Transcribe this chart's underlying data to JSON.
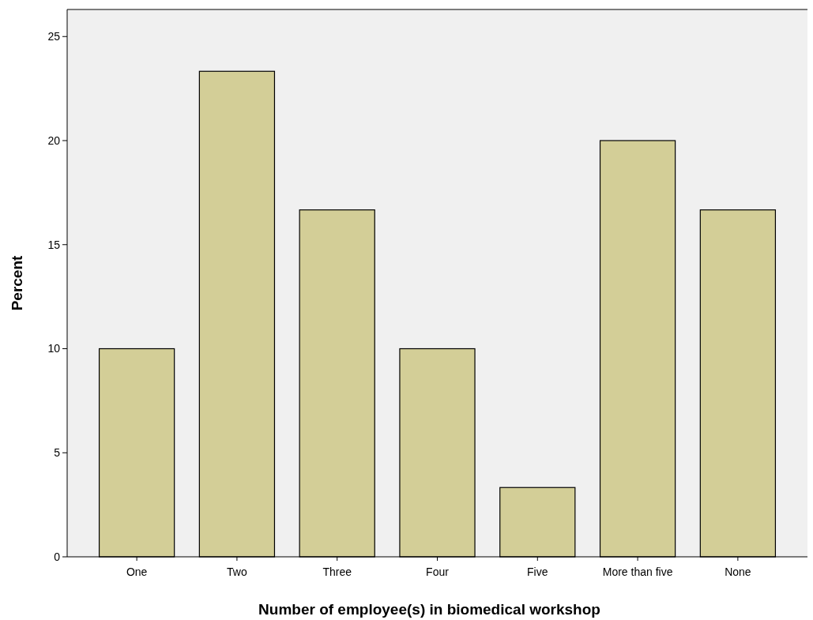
{
  "chart_data": {
    "type": "bar",
    "xlabel": "Number of employee(s) in biomedical workshop",
    "ylabel": "Percent",
    "categories": [
      "One",
      "Two",
      "Three",
      "Four",
      "Five",
      "More than five",
      "None"
    ],
    "values": [
      10,
      23.33,
      16.67,
      10,
      3.33,
      20,
      16.67
    ],
    "color": "#d3ce97",
    "ylim": [
      0,
      26.3
    ],
    "yticks": [
      0,
      5,
      10,
      15,
      20,
      25
    ],
    "grid": false
  }
}
